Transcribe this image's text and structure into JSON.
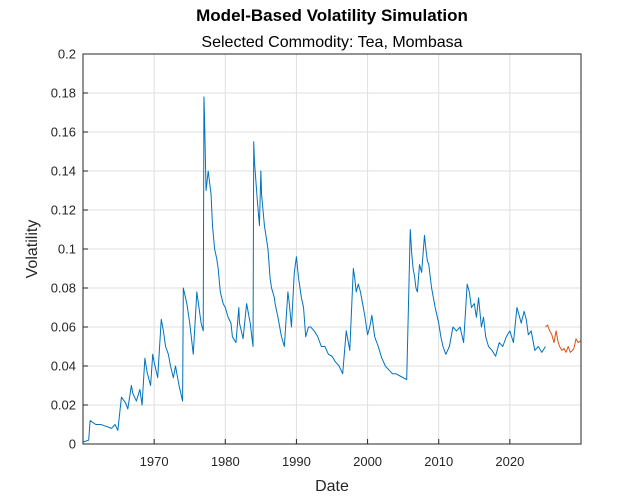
{
  "chart_data": {
    "type": "line",
    "title": "Model-Based Volatility Simulation",
    "subtitle": "Selected Commodity: Tea, Mombasa",
    "xlabel": "Date",
    "ylabel": "Volatility",
    "xlim": [
      1960,
      2030
    ],
    "ylim": [
      0,
      0.2
    ],
    "xticks": [
      1970,
      1980,
      1990,
      2000,
      2010,
      2020
    ],
    "xtick_labels": [
      "1970",
      "1980",
      "1990",
      "2000",
      "2010",
      "2020"
    ],
    "yticks": [
      0,
      0.02,
      0.04,
      0.06,
      0.08,
      0.1,
      0.12,
      0.14,
      0.16,
      0.18,
      0.2
    ],
    "ytick_labels": [
      "0",
      "0.02",
      "0.04",
      "0.06",
      "0.08",
      "0.1",
      "0.12",
      "0.14",
      "0.16",
      "0.18",
      "0.2"
    ],
    "grid": true,
    "colors": {
      "historical": "#0072BD",
      "simulated": "#D95319"
    },
    "series": [
      {
        "x": [
          1960.0,
          1960.8,
          1961.0,
          1961.4,
          1961.8,
          1962.5,
          1963.3,
          1964.0,
          1964.5,
          1964.9,
          1965.4,
          1966.0,
          1966.3,
          1966.8,
          1967.0,
          1967.5,
          1968.0,
          1968.3,
          1968.7,
          1969.0,
          1969.5,
          1969.8,
          1970.0,
          1970.5,
          1971.0,
          1971.3,
          1971.6,
          1972.0,
          1972.3,
          1972.7,
          1973.0,
          1973.5,
          1974.0,
          1974.1,
          1974.6,
          1975.0,
          1975.5,
          1976.0,
          1976.3,
          1976.6,
          1976.9,
          1977.0,
          1977.05,
          1977.3,
          1977.6,
          1978.0,
          1978.2,
          1978.5,
          1978.8,
          1979.0,
          1979.3,
          1979.7,
          1980.0,
          1980.4,
          1980.8,
          1981.0,
          1981.5,
          1981.9,
          1982.0,
          1982.5,
          1983.0,
          1983.5,
          1983.9,
          1984.0,
          1984.1,
          1984.5,
          1984.8,
          1985.0,
          1985.1,
          1985.5,
          1986.0,
          1986.3,
          1986.5,
          1986.9,
          1987.0,
          1987.4,
          1987.9,
          1988.3,
          1988.8,
          1989.0,
          1989.3,
          1989.7,
          1990.0,
          1990.3,
          1990.7,
          1991.0,
          1991.3,
          1991.7,
          1992.0,
          1992.5,
          1993.0,
          1993.5,
          1994.0,
          1994.5,
          1995.0,
          1995.5,
          1996.0,
          1996.5,
          1997.0,
          1997.5,
          1998.0,
          1998.2,
          1998.4,
          1998.7,
          1999.0,
          1999.3,
          1999.6,
          2000.0,
          2000.3,
          2000.6,
          2001.0,
          2001.5,
          2002.0,
          2002.5,
          2003.0,
          2003.5,
          2004.0,
          2004.5,
          2005.0,
          2005.5,
          2006.0,
          2006.2,
          2006.4,
          2006.6,
          2006.8,
          2007.0,
          2007.3,
          2007.6,
          2008.0,
          2008.2,
          2008.4,
          2008.6,
          2009.0,
          2009.5,
          2010.0,
          2010.3,
          2010.6,
          2011.0,
          2011.5,
          2012.0,
          2012.5,
          2013.0,
          2013.5,
          2014.0,
          2014.3,
          2014.6,
          2015.0,
          2015.3,
          2015.6,
          2016.0,
          2016.3,
          2016.6,
          2017.0,
          2017.5,
          2018.0,
          2018.5,
          2019.0,
          2019.5,
          2020.0,
          2020.5,
          2021.0,
          2021.3,
          2021.6,
          2022.0,
          2022.3,
          2022.6,
          2023.0,
          2023.5,
          2024.0,
          2024.5,
          2025.0
        ],
        "values": [
          0.001,
          0.002,
          0.012,
          0.011,
          0.01,
          0.01,
          0.009,
          0.008,
          0.01,
          0.007,
          0.024,
          0.021,
          0.018,
          0.03,
          0.026,
          0.022,
          0.028,
          0.02,
          0.044,
          0.037,
          0.03,
          0.046,
          0.042,
          0.034,
          0.064,
          0.058,
          0.05,
          0.046,
          0.04,
          0.034,
          0.04,
          0.03,
          0.022,
          0.08,
          0.072,
          0.062,
          0.046,
          0.078,
          0.07,
          0.062,
          0.058,
          0.178,
          0.172,
          0.13,
          0.14,
          0.128,
          0.112,
          0.1,
          0.095,
          0.09,
          0.078,
          0.072,
          0.07,
          0.065,
          0.062,
          0.055,
          0.052,
          0.07,
          0.062,
          0.054,
          0.072,
          0.062,
          0.05,
          0.155,
          0.145,
          0.125,
          0.112,
          0.14,
          0.128,
          0.112,
          0.1,
          0.085,
          0.08,
          0.075,
          0.072,
          0.065,
          0.055,
          0.05,
          0.078,
          0.072,
          0.06,
          0.088,
          0.096,
          0.085,
          0.075,
          0.07,
          0.055,
          0.06,
          0.06,
          0.058,
          0.055,
          0.05,
          0.05,
          0.046,
          0.045,
          0.042,
          0.04,
          0.036,
          0.058,
          0.048,
          0.09,
          0.085,
          0.078,
          0.082,
          0.078,
          0.072,
          0.066,
          0.056,
          0.06,
          0.066,
          0.055,
          0.05,
          0.044,
          0.04,
          0.038,
          0.036,
          0.036,
          0.035,
          0.034,
          0.033,
          0.11,
          0.098,
          0.09,
          0.086,
          0.08,
          0.078,
          0.092,
          0.088,
          0.107,
          0.1,
          0.094,
          0.092,
          0.08,
          0.07,
          0.062,
          0.055,
          0.05,
          0.046,
          0.05,
          0.06,
          0.058,
          0.06,
          0.052,
          0.082,
          0.078,
          0.07,
          0.072,
          0.065,
          0.075,
          0.06,
          0.065,
          0.055,
          0.05,
          0.048,
          0.045,
          0.052,
          0.05,
          0.055,
          0.058,
          0.052,
          0.07,
          0.066,
          0.062,
          0.068,
          0.064,
          0.056,
          0.058,
          0.048,
          0.05,
          0.047,
          0.05
        ]
      },
      {
        "x": [
          2025.0,
          2025.3,
          2025.6,
          2025.9,
          2026.2,
          2026.5,
          2026.8,
          2027.0,
          2027.3,
          2027.6,
          2027.9,
          2028.2,
          2028.5,
          2028.8,
          2029.0,
          2029.3,
          2029.6,
          2030.0
        ],
        "values": [
          0.06,
          0.061,
          0.058,
          0.056,
          0.052,
          0.058,
          0.052,
          0.05,
          0.048,
          0.049,
          0.047,
          0.05,
          0.047,
          0.048,
          0.049,
          0.054,
          0.052,
          0.053
        ]
      }
    ]
  }
}
